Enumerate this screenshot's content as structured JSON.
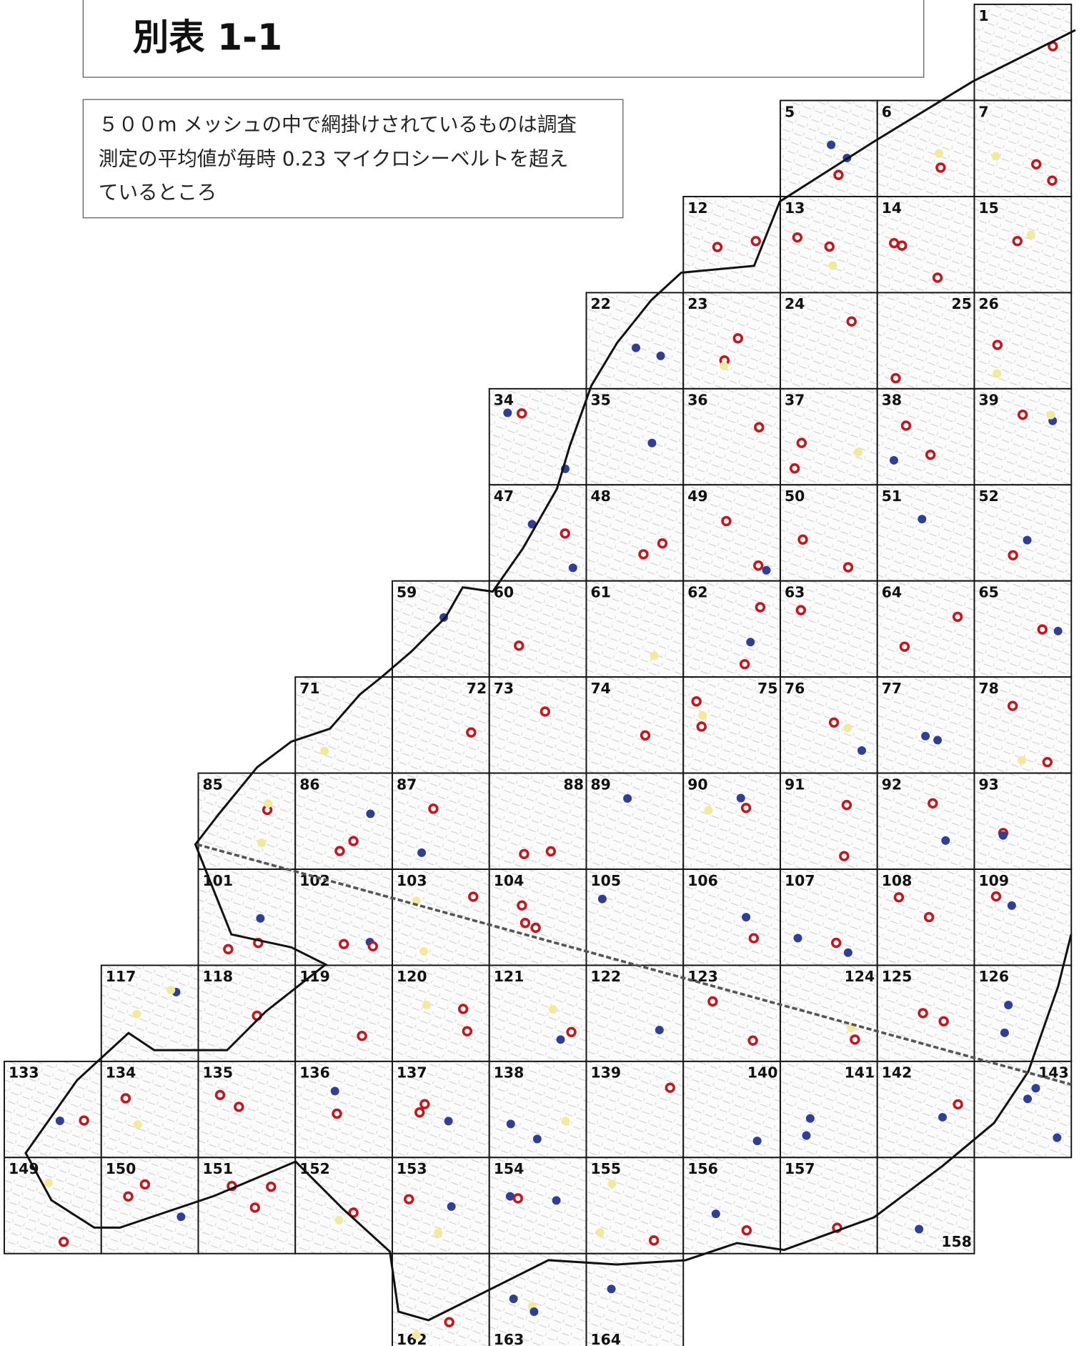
{
  "title": "別表 1-1",
  "note": [
    "５００m メッシュの中で網掛けされているものは調査",
    "測定の平均値が毎時 0.23 マイクロシーベルトを超え",
    "ているところ"
  ],
  "mesh_rows": [
    [
      "1"
    ],
    [
      "5",
      "6",
      "7"
    ],
    [
      "12",
      "13",
      "14",
      "15"
    ],
    [
      "22",
      "23",
      "24",
      "25",
      "26"
    ],
    [
      "34",
      "35",
      "36",
      "37",
      "38",
      "39"
    ],
    [
      "47",
      "48",
      "49",
      "50",
      "51",
      "52"
    ],
    [
      "59",
      "60",
      "61",
      "62",
      "63",
      "64",
      "65"
    ],
    [
      "71",
      "72",
      "73",
      "74",
      "75",
      "76",
      "77",
      "78"
    ],
    [
      "85",
      "86",
      "87",
      "88",
      "89",
      "90",
      "91",
      "92",
      "93"
    ],
    [
      "101",
      "102",
      "103",
      "104",
      "105",
      "106",
      "107",
      "108",
      "109"
    ],
    [
      "117",
      "118",
      "119",
      "120",
      "121",
      "122",
      "123",
      "124",
      "125",
      "126"
    ],
    [
      "133",
      "134",
      "135",
      "136",
      "137",
      "138",
      "139",
      "140",
      "141",
      "142",
      "143"
    ],
    [
      "149",
      "150",
      "151",
      "152",
      "153",
      "154",
      "155",
      "156",
      "157",
      "158"
    ],
    [
      "162",
      "163",
      "164"
    ]
  ]
}
